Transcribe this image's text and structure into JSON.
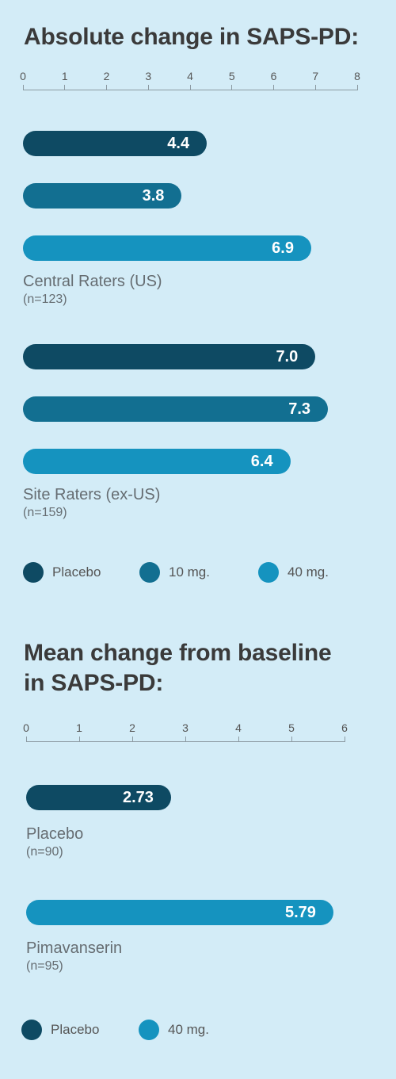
{
  "chart_data": [
    {
      "type": "bar",
      "orientation": "horizontal",
      "title": "Absolute change in SAPS-PD:",
      "xlim": [
        0,
        8
      ],
      "ticks": [
        "0",
        "1",
        "2",
        "3",
        "4",
        "5",
        "6",
        "7",
        "8"
      ],
      "groups": [
        {
          "label": "Central Raters (US)",
          "sublabel": "(n=123)",
          "bars": [
            {
              "series": "Placebo",
              "value": 4.4,
              "label": "4.4"
            },
            {
              "series": "10 mg.",
              "value": 3.8,
              "label": "3.8"
            },
            {
              "series": "40 mg.",
              "value": 6.9,
              "label": "6.9"
            }
          ]
        },
        {
          "label": "Site Raters (ex-US)",
          "sublabel": "(n=159)",
          "bars": [
            {
              "series": "Placebo",
              "value": 7.0,
              "label": "7.0"
            },
            {
              "series": "10 mg.",
              "value": 7.3,
              "label": "7.3"
            },
            {
              "series": "40 mg.",
              "value": 6.4,
              "label": "6.4"
            }
          ]
        }
      ],
      "legend": [
        {
          "name": "Placebo",
          "color": "#0e4a63"
        },
        {
          "name": "10 mg.",
          "color": "#126f91"
        },
        {
          "name": "40 mg.",
          "color": "#1593bf"
        }
      ]
    },
    {
      "type": "bar",
      "orientation": "horizontal",
      "title_lines": [
        "Mean change from baseline",
        "in SAPS-PD:"
      ],
      "xlim": [
        0,
        6
      ],
      "ticks": [
        "0",
        "1",
        "2",
        "3",
        "4",
        "5",
        "6"
      ],
      "groups": [
        {
          "label": "Placebo",
          "sublabel": "(n=90)",
          "bars": [
            {
              "series": "Placebo",
              "value": 2.73,
              "label": "2.73"
            }
          ]
        },
        {
          "label": "Pimavanserin",
          "sublabel": "(n=95)",
          "bars": [
            {
              "series": "40 mg.",
              "value": 5.79,
              "label": "5.79"
            }
          ]
        }
      ],
      "legend": [
        {
          "name": "Placebo",
          "color": "#0e4a63"
        },
        {
          "name": "40 mg.",
          "color": "#1593bf"
        }
      ]
    }
  ]
}
